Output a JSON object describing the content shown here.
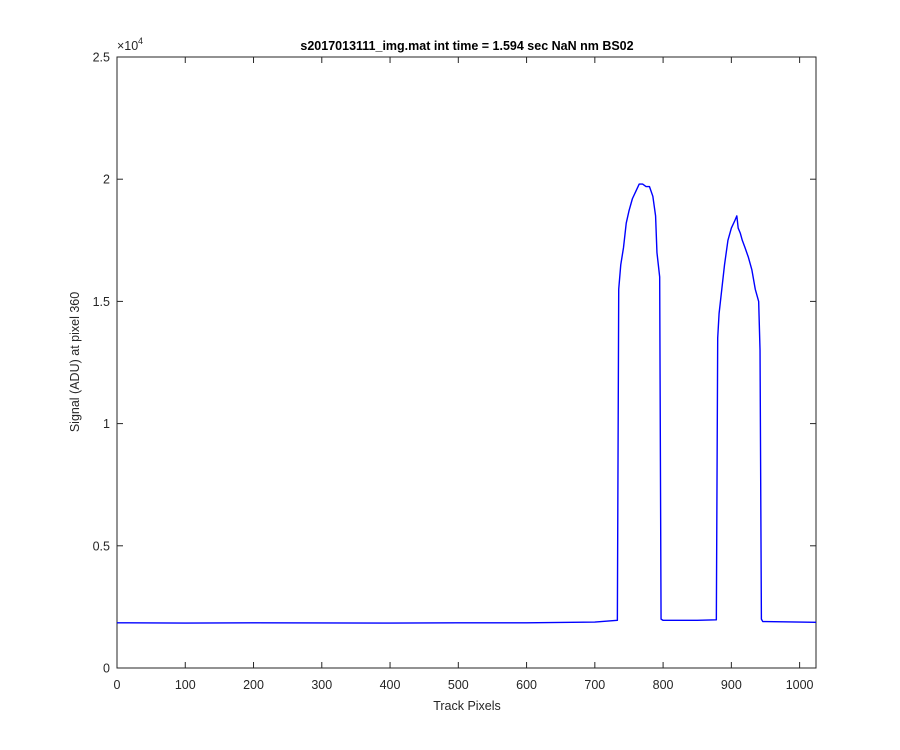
{
  "chart_data": {
    "type": "line",
    "title": "s2017013111_img.mat int time = 1.594 sec  NaN nm BS02",
    "xlabel": "Track Pixels",
    "ylabel": "Signal (ADU) at pixel 360",
    "xlim": [
      0,
      1024
    ],
    "ylim": [
      0,
      25000
    ],
    "xticks": [
      0,
      100,
      200,
      300,
      400,
      500,
      600,
      700,
      800,
      900,
      1000
    ],
    "yticks": [
      0,
      5000,
      10000,
      15000,
      20000,
      25000
    ],
    "ytick_labels": [
      "0",
      "0.5",
      "1",
      "1.5",
      "2",
      "2.5"
    ],
    "y_exponent_base": "×10",
    "y_exponent_power": "4",
    "grid": false,
    "series": [
      {
        "color": "#0000ff",
        "x": [
          0,
          100,
          200,
          300,
          400,
          500,
          600,
          700,
          733,
          735,
          738,
          742,
          746,
          750,
          755,
          760,
          765,
          770,
          775,
          780,
          785,
          789,
          791,
          795,
          797,
          800,
          850,
          878,
          880,
          882,
          886,
          890,
          895,
          900,
          905,
          908,
          910,
          913,
          916,
          920,
          925,
          930,
          935,
          940,
          942,
          944,
          946,
          950,
          1000,
          1024
        ],
        "y": [
          1850,
          1840,
          1850,
          1845,
          1840,
          1850,
          1850,
          1880,
          1950,
          15500,
          16500,
          17200,
          18200,
          18700,
          19200,
          19500,
          19800,
          19800,
          19700,
          19700,
          19300,
          18500,
          17000,
          16000,
          2000,
          1950,
          1950,
          1970,
          13500,
          14500,
          15500,
          16500,
          17500,
          18000,
          18300,
          18500,
          18000,
          17800,
          17500,
          17200,
          16800,
          16300,
          15500,
          15000,
          13000,
          2000,
          1900,
          1900,
          1880,
          1870
        ]
      }
    ]
  }
}
